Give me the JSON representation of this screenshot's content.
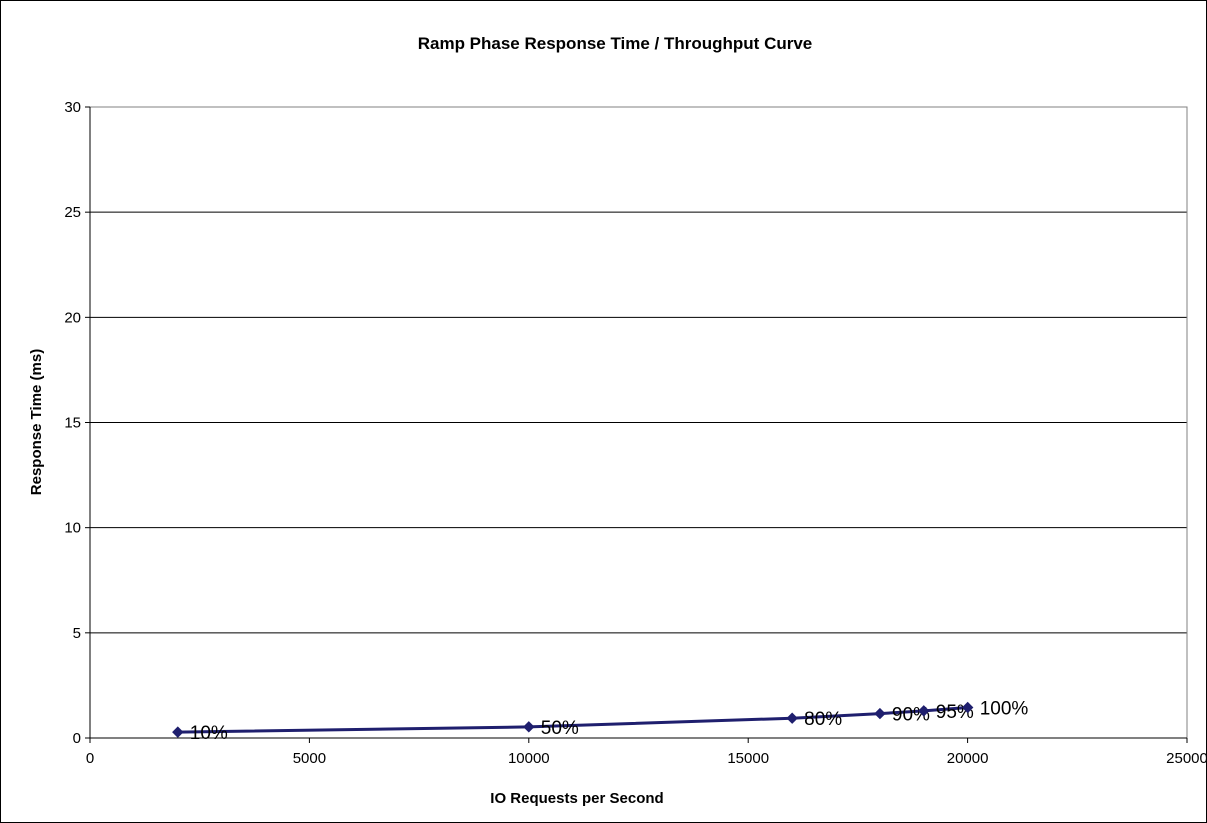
{
  "chart_data": {
    "type": "scatter",
    "title": "Ramp Phase Response Time / Throughput Curve",
    "xlabel": "IO Requests per Second",
    "ylabel": "Response Time (ms)",
    "xlim": [
      0,
      25000
    ],
    "ylim": [
      0,
      30
    ],
    "x_ticks": [
      "0",
      "5000",
      "10000",
      "15000",
      "20000",
      "25000"
    ],
    "y_ticks": [
      "0",
      "5",
      "10",
      "15",
      "20",
      "25",
      "30"
    ],
    "grid": "horizontal",
    "legend": "none",
    "series": [
      {
        "x": [
          2001,
          10000,
          16002,
          18002,
          19001,
          20002
        ],
        "y": [
          0.28,
          0.53,
          0.94,
          1.16,
          1.29,
          1.45
        ],
        "point_labels": [
          "10%",
          "50%",
          "80%",
          "90%",
          "95%",
          "100%"
        ],
        "color": "#1f1f6e",
        "marker": "diamond"
      }
    ]
  }
}
